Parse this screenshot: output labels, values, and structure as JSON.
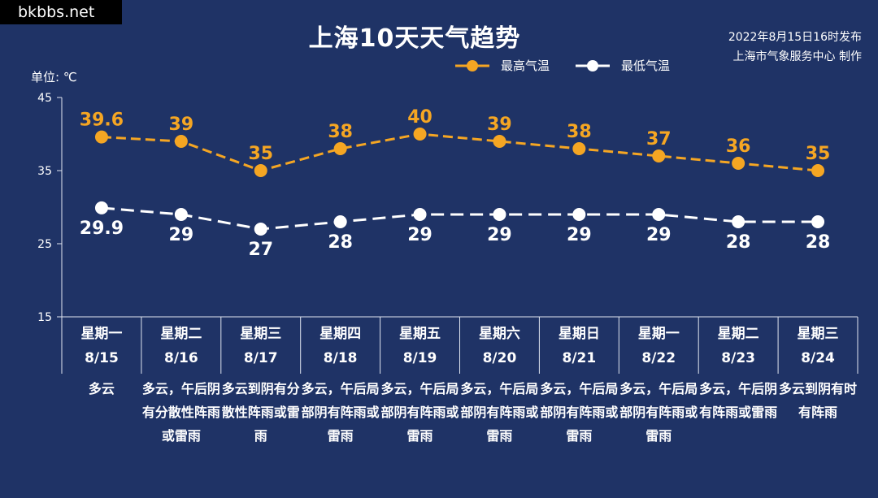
{
  "watermark": "bkbbs.net",
  "title": "上海10天天气趋势",
  "publish": {
    "line1": "2022年8月15日16时发布",
    "line2": "上海市气象服务中心 制作"
  },
  "unit_label": "单位: ℃",
  "colors": {
    "background": "#1f3366",
    "high": "#f5a623",
    "low": "#ffffff",
    "axis": "#e0e6f0"
  },
  "chart_data": {
    "type": "line",
    "ylim": [
      15,
      45
    ],
    "yticks": [
      15,
      25,
      35,
      45
    ],
    "legend_position": "top-center",
    "grid": false,
    "x": [
      "8/15",
      "8/16",
      "8/17",
      "8/18",
      "8/19",
      "8/20",
      "8/21",
      "8/22",
      "8/23",
      "8/24"
    ],
    "weekdays": [
      "星期一",
      "星期二",
      "星期三",
      "星期四",
      "星期五",
      "星期六",
      "星期日",
      "星期一",
      "星期二",
      "星期三"
    ],
    "series": [
      {
        "name": "最高气温",
        "values": [
          39.6,
          39,
          35,
          38,
          40,
          39,
          38,
          37,
          36,
          35
        ]
      },
      {
        "name": "最低气温",
        "values": [
          29.9,
          29,
          27,
          28,
          29,
          29,
          29,
          29,
          28,
          28
        ]
      }
    ]
  },
  "descriptions": [
    "多云",
    "多云，午后阴有分散性阵雨或雷雨",
    "多云到阴有分散性阵雨或雷雨",
    "多云，午后局部阴有阵雨或雷雨",
    "多云，午后局部阴有阵雨或雷雨",
    "多云，午后局部阴有阵雨或雷雨",
    "多云，午后局部阴有阵雨或雷雨",
    "多云，午后局部阴有阵雨或雷雨",
    "多云，午后阴有阵雨或雷雨",
    "多云到阴有时有阵雨"
  ]
}
